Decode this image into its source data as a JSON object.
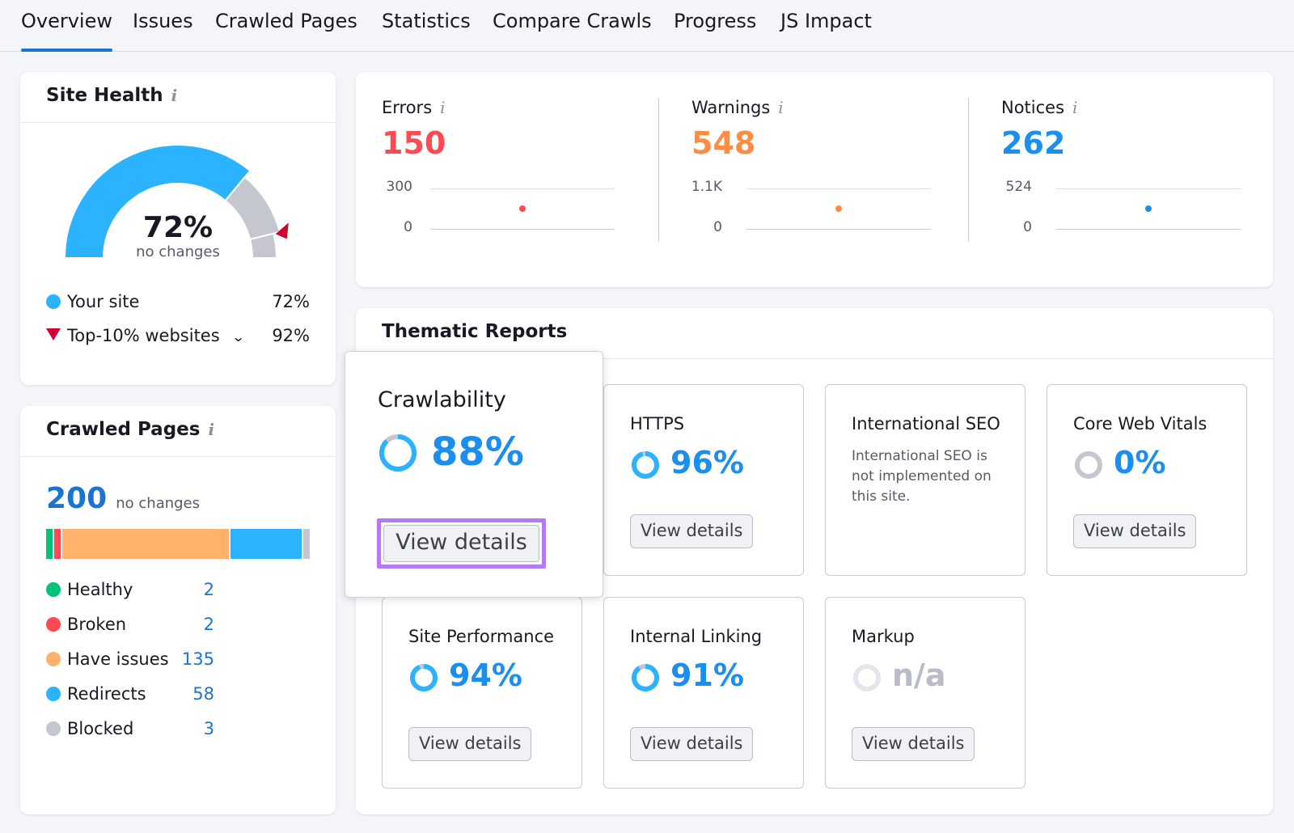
{
  "tabs": [
    "Overview",
    "Issues",
    "Crawled Pages",
    "Statistics",
    "Compare Crawls",
    "Progress",
    "JS Impact"
  ],
  "active_tab": "Overview",
  "site_health": {
    "title": "Site Health",
    "info_icon": "i",
    "score": "72%",
    "score_caption": "no changes",
    "score_value": 72,
    "top10_value": 92,
    "legend": [
      {
        "label": "Your site",
        "value": "72%",
        "color": "#2bb3ff",
        "marker": "dot"
      },
      {
        "label": "Top-10% websites",
        "value": "92%",
        "color": "#d1002f",
        "marker": "triangle"
      }
    ]
  },
  "crawled_pages": {
    "title": "Crawled Pages",
    "info_icon": "i",
    "total": "200",
    "total_caption": "no changes",
    "legend": [
      {
        "label": "Healthy",
        "value": "2",
        "color": "#00c27a"
      },
      {
        "label": "Broken",
        "value": "2",
        "color": "#ff4953"
      },
      {
        "label": "Have issues",
        "value": "135",
        "color": "#ffb26b"
      },
      {
        "label": "Redirects",
        "value": "58",
        "color": "#2bb3ff"
      },
      {
        "label": "Blocked",
        "value": "3",
        "color": "#c4c7cf"
      }
    ]
  },
  "metrics": [
    {
      "label": "Errors",
      "value": "150",
      "color": "#ff4953",
      "axis_max": "300",
      "axis_min": "0",
      "point": 150,
      "max": 300
    },
    {
      "label": "Warnings",
      "value": "548",
      "color": "#ff8c43",
      "axis_max": "1.1K",
      "axis_min": "0",
      "point": 548,
      "max": 1100
    },
    {
      "label": "Notices",
      "value": "262",
      "color": "#1a8ff0",
      "axis_max": "524",
      "axis_min": "0",
      "point": 262,
      "max": 524
    }
  ],
  "metrics_info_icon": "i",
  "thematic": {
    "title": "Thematic Reports",
    "button_label": "View details",
    "cards": [
      {
        "title": "Crawlability",
        "pct": "88%",
        "value": 88
      },
      {
        "title": "HTTPS",
        "pct": "96%",
        "value": 96
      },
      {
        "title": "International SEO",
        "desc": "International SEO is not implemented on this site."
      },
      {
        "title": "Core Web Vitals",
        "pct": "0%",
        "value": 0
      },
      {
        "title": "Site Performance",
        "pct": "94%",
        "value": 94
      },
      {
        "title": "Internal Linking",
        "pct": "91%",
        "value": 91
      },
      {
        "title": "Markup",
        "pct": "n/a",
        "value": null
      }
    ]
  },
  "highlight_color": "#b57bf7"
}
